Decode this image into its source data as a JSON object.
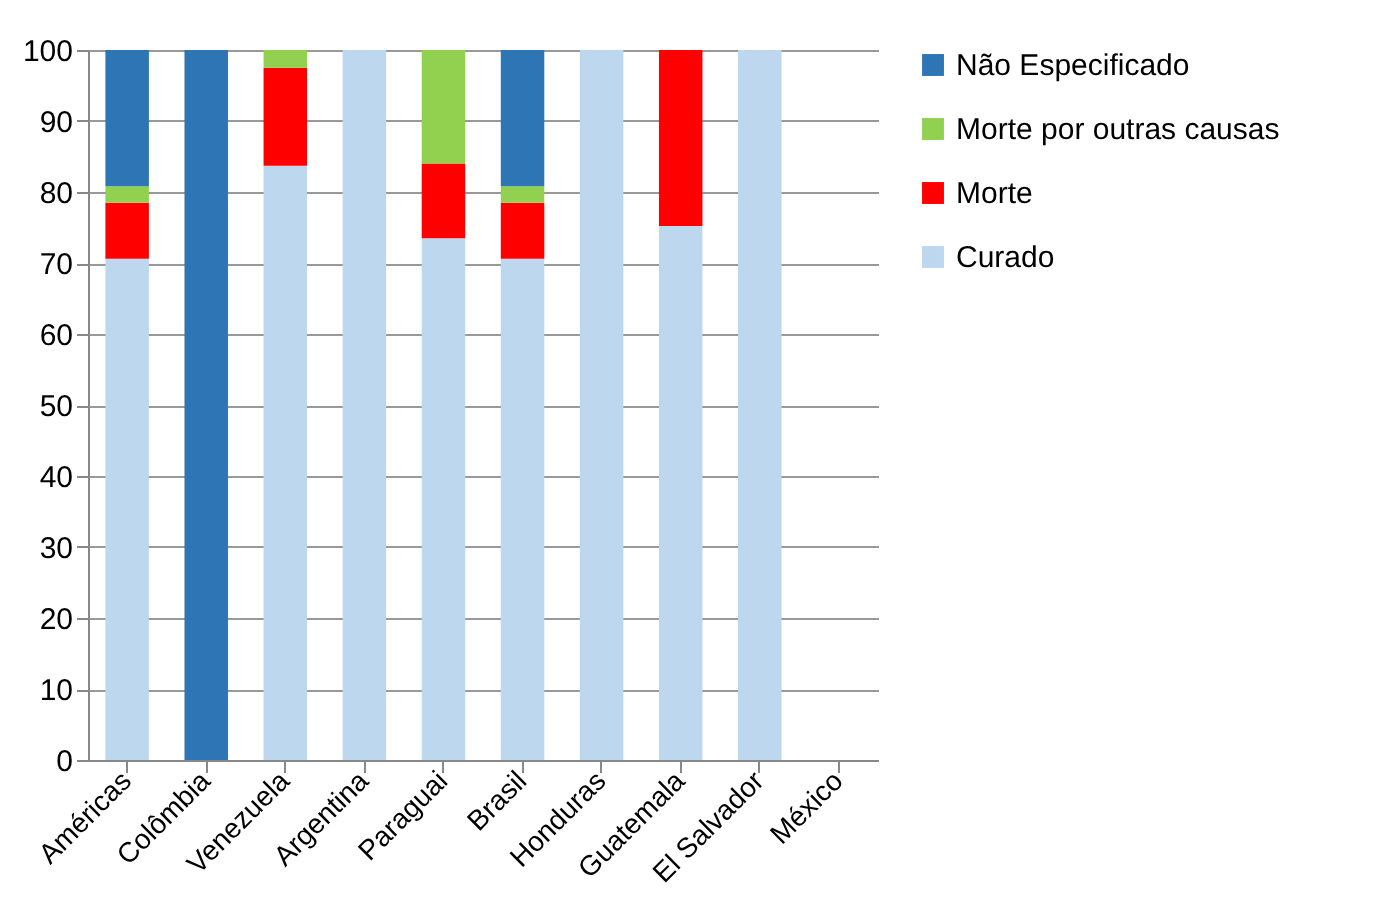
{
  "chart_data": {
    "type": "bar",
    "stacked": true,
    "categories": [
      "Américas",
      "Colômbia",
      "Venezuela",
      "Argentina",
      "Paraguai",
      "Brasil",
      "Honduras",
      "Guatemala",
      "El Salvador",
      "México"
    ],
    "series": [
      {
        "name": "Curado",
        "color": "#bdd7ee",
        "values": [
          70.6,
          0,
          83.7,
          100,
          73.5,
          70.6,
          100,
          75.2,
          100,
          null
        ]
      },
      {
        "name": "Morte",
        "color": "#ff0000",
        "values": [
          7.9,
          0,
          13.8,
          0,
          10.5,
          7.9,
          0,
          24.8,
          0,
          null
        ]
      },
      {
        "name": "Morte por outras causas",
        "color": "#92d050",
        "values": [
          2.3,
          0,
          2.5,
          0,
          16,
          2.3,
          0,
          0,
          0,
          null
        ]
      },
      {
        "name": "Não Especificado",
        "color": "#2e75b6",
        "values": [
          19.2,
          100,
          0,
          0,
          0,
          19.2,
          0,
          0,
          0,
          null
        ]
      }
    ],
    "ylim": [
      0,
      100
    ],
    "yticks": [
      0,
      10,
      20,
      30,
      40,
      50,
      60,
      70,
      80,
      90,
      100
    ],
    "grid": "y",
    "legend": "right"
  }
}
